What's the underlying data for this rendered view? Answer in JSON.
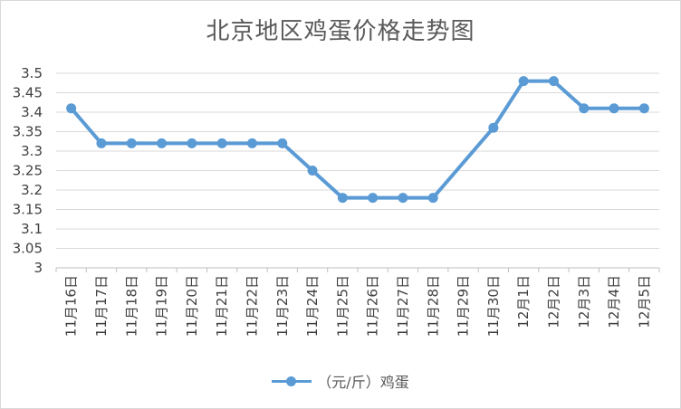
{
  "chart_data": {
    "type": "line",
    "title": "北京地区鸡蛋价格走势图",
    "categories": [
      "11月16日",
      "11月17日",
      "11月18日",
      "11月19日",
      "11月20日",
      "11月21日",
      "11月22日",
      "11月23日",
      "11月24日",
      "11月25日",
      "11月26日",
      "11月27日",
      "11月28日",
      "11月29日",
      "11月30日",
      "12月1日",
      "12月2日",
      "12月3日",
      "12月4日",
      "12月5日"
    ],
    "series": [
      {
        "name": "（元/斤）鸡蛋",
        "values": [
          3.41,
          3.32,
          3.32,
          3.32,
          3.32,
          3.32,
          3.32,
          3.32,
          3.25,
          3.18,
          3.18,
          3.18,
          3.18,
          null,
          3.36,
          3.48,
          3.48,
          3.41,
          3.41,
          3.41
        ],
        "color": "#5b9bd5"
      }
    ],
    "y_ticks": [
      "3.5",
      "3.45",
      "3.4",
      "3.35",
      "3.3",
      "3.25",
      "3.2",
      "3.15",
      "3.1",
      "3.05",
      "3"
    ],
    "ylim": [
      3,
      3.5
    ],
    "grid": true,
    "legend": "bottom"
  }
}
